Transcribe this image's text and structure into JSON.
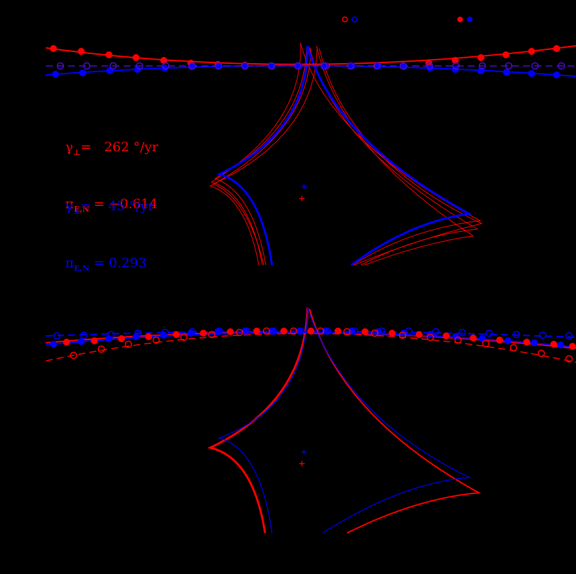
{
  "chart_data": {
    "type": "scatter",
    "title": "",
    "description": "Two stacked panels of microlensing caustic geometry with source trajectory points; axes/labels drawn in black on black background (not visible).",
    "colors": {
      "model_a": "#ff0000",
      "model_b": "#0000ff",
      "background": "#000000"
    },
    "legend": {
      "items": [
        {
          "marker": "open-circle",
          "colors": [
            "#ff0000",
            "#0000ff"
          ],
          "x": 497
        },
        {
          "marker": "filled-circle",
          "colors": [
            "#ff0000",
            "#0000ff"
          ],
          "x": 663
        }
      ]
    },
    "panels": [
      {
        "name": "top",
        "annotations": {
          "red": {
            "gamma_label": "γ⊥=",
            "gamma_value": "262 °/yr",
            "pi_label": "πE,N",
            "pi_value": "= −0.614"
          },
          "blue": {
            "gamma_label": "γ⊥=",
            "gamma_value": "45 °/yr",
            "pi_label": "πE,N",
            "pi_value": "= 0.293"
          }
        },
        "trajectory_y": 95,
        "series": [
          {
            "name": "red filled",
            "color": "#ff0000",
            "style": "solid",
            "marker": "filled",
            "x": [
              77,
              117,
              157,
              196,
              236,
              275,
              314,
              353,
              392,
              431,
              470,
              507,
              544,
              581,
              618,
              656,
              693,
              729,
              766,
              802
            ],
            "y": [
              70,
              74,
              79,
              83,
              87,
              91,
              93,
              94,
              95,
              95,
              95,
              95,
              95,
              95,
              91,
              87,
              83,
              79,
              74,
              70
            ]
          },
          {
            "name": "blue filled",
            "color": "#0000ff",
            "style": "solid",
            "marker": "filled",
            "x": [
              80,
              119,
              158,
              198,
              237,
              276,
              315,
              353,
              392,
              431,
              469,
              507,
              545,
              582,
              620,
              656,
              693,
              730,
              766,
              802
            ],
            "y": [
              107,
              105,
              102,
              100,
              98,
              96,
              95,
              95,
              95,
              95,
              95,
              95,
              95,
              96,
              98,
              100,
              102,
              104,
              106,
              108
            ]
          },
          {
            "name": "blue open",
            "color": "#4b0ecc",
            "style": "dashed",
            "marker": "open",
            "x": [
              87,
              125,
              163,
              201,
              239,
              277,
              315,
              353,
              391,
              429,
              467,
              505,
              543,
              581,
              619,
              657,
              695,
              733,
              771,
              809
            ],
            "y": [
              95,
              95,
              95,
              95,
              95,
              95,
              95,
              95,
              95,
              95,
              95,
              95,
              95,
              95,
              95,
              95,
              95,
              95,
              95,
              95
            ]
          }
        ],
        "source_markers": [
          {
            "color": "#0000ff",
            "x": 438,
            "y": 269
          },
          {
            "color": "#ff0000",
            "x": 435,
            "y": 286
          }
        ]
      },
      {
        "name": "bottom",
        "trajectory_y": 477,
        "series": [
          {
            "name": "blue open",
            "color": "#0000ff",
            "style": "dashed",
            "marker": "open",
            "x": [
              82,
              121,
              160,
              199,
              238,
              277,
              316,
              355,
              394,
              433,
              472,
              511,
              550,
              589,
              628,
              666,
              705,
              744,
              782,
              820
            ],
            "y": [
              484,
              483,
              482,
              480,
              479,
              478,
              477,
              477,
              477,
              477,
              477,
              477,
              477,
              477,
              478,
              479,
              480,
              482,
              483,
              484
            ]
          },
          {
            "name": "red filled",
            "color": "#ff0000",
            "style": "solid",
            "marker": "filled",
            "x": [
              96,
              136,
              175,
              214,
              254,
              293,
              332,
              370,
              409,
              448,
              487,
              526,
              565,
              604,
              643,
              682,
              720,
              759,
              798,
              825
            ],
            "y": [
              493,
              491,
              488,
              485,
              482,
              480,
              478,
              477,
              477,
              477,
              477,
              478,
              480,
              482,
              484,
              487,
              490,
              493,
              496,
              499
            ]
          },
          {
            "name": "blue filled",
            "color": "#0000ff",
            "style": "solid",
            "marker": "filled",
            "x": [
              77,
              117,
              157,
              196,
              236,
              275,
              314,
              353,
              392,
              431,
              469,
              507,
              545,
              582,
              620,
              657,
              695,
              732,
              770,
              808
            ],
            "y": [
              496,
              492,
              488,
              485,
              483,
              480,
              478,
              477,
              477,
              477,
              477,
              477,
              478,
              480,
              482,
              485,
              488,
              491,
              494,
              497
            ]
          },
          {
            "name": "red open",
            "color": "#ff0000",
            "style": "dashed",
            "marker": "open",
            "x": [
              106,
              146,
              185,
              225,
              265,
              305,
              345,
              384,
              423,
              462,
              500,
              540,
              580,
              620,
              660,
              700,
              740,
              780,
              820
            ],
            "y": [
              512,
              503,
              496,
              490,
              486,
              482,
              479,
              477,
              477,
              477,
              478,
              480,
              483,
              486,
              490,
              495,
              501,
              509,
              517
            ]
          }
        ],
        "source_markers": [
          {
            "color": "#0000ff",
            "x": 438,
            "y": 651
          },
          {
            "color": "#ff0000",
            "x": 435,
            "y": 668
          }
        ]
      }
    ],
    "xlabel": "",
    "ylabel": "",
    "grid": false
  },
  "annotations": {
    "red_gamma_label": "γ",
    "red_gamma_value": "=   262 °/yr",
    "red_pi_label": "π",
    "red_pi_sub": "E,N",
    "red_pi_value": " = −0.614",
    "blue_gamma_label": "γ",
    "blue_gamma_value": "=    45 °/yr",
    "blue_pi_label": "π",
    "blue_pi_sub": "E,N",
    "blue_pi_value": " = 0.293",
    "perp_sub": "⊥"
  }
}
